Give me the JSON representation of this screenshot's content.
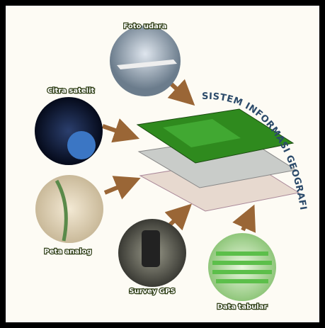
{
  "title": "SISTEM INFORMASI GEOGRAFIS",
  "sources": [
    {
      "label": "Foto udara"
    },
    {
      "label": "Citra satelit"
    },
    {
      "label": "Peta analog"
    },
    {
      "label": "Survey GPS"
    },
    {
      "label": "Data tabular"
    }
  ]
}
